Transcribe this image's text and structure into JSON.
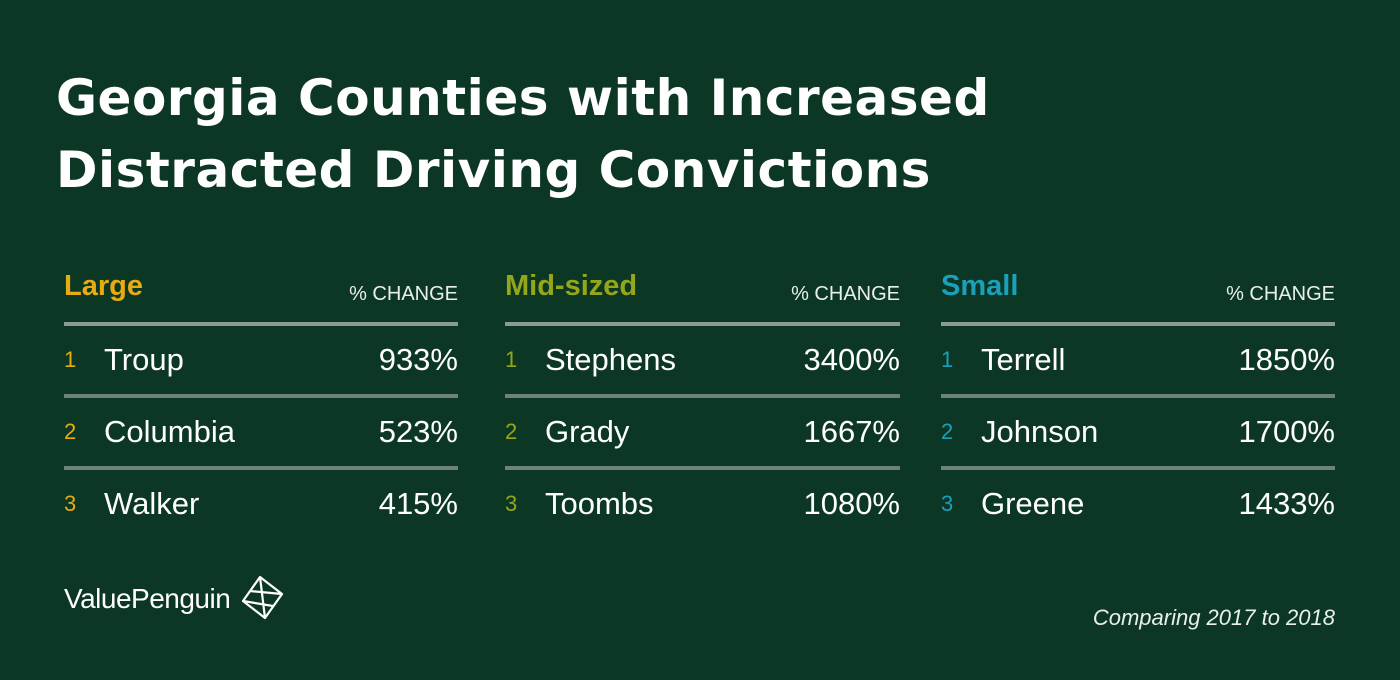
{
  "title_line1": "Georgia Counties with Increased",
  "title_line2": "Distracted Driving Convictions",
  "chart_data": [
    {
      "type": "table",
      "category": "Large",
      "column_header": "% CHANGE",
      "rows": [
        {
          "rank": "1",
          "county": "Troup",
          "value": "933%"
        },
        {
          "rank": "2",
          "county": "Columbia",
          "value": "523%"
        },
        {
          "rank": "3",
          "county": "Walker",
          "value": "415%"
        }
      ]
    },
    {
      "type": "table",
      "category": "Mid-sized",
      "column_header": "% CHANGE",
      "rows": [
        {
          "rank": "1",
          "county": "Stephens",
          "value": "3400%"
        },
        {
          "rank": "2",
          "county": "Grady",
          "value": "1667%"
        },
        {
          "rank": "3",
          "county": "Toombs",
          "value": "1080%"
        }
      ]
    },
    {
      "type": "table",
      "category": "Small",
      "column_header": "% CHANGE",
      "rows": [
        {
          "rank": "1",
          "county": "Terrell",
          "value": "1850%"
        },
        {
          "rank": "2",
          "county": "Johnson",
          "value": "1700%"
        },
        {
          "rank": "3",
          "county": "Greene",
          "value": "1433%"
        }
      ]
    }
  ],
  "colors": {
    "background": "#0c3724",
    "large": "#e7ab13",
    "mid_sized": "#94a71a",
    "small": "#1aa0ba"
  },
  "brand": {
    "name": "ValuePenguin",
    "icon": "valuepenguin-logo-icon"
  },
  "footnote": "Comparing 2017 to 2018"
}
